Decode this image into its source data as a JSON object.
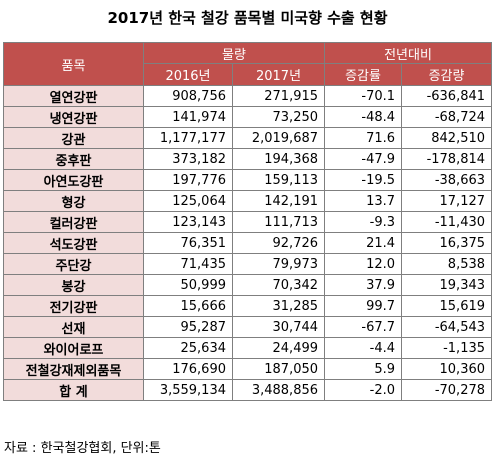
{
  "title": "2017년 한국 철강 품목별 미국향 수출 현황",
  "headers": {
    "item": "품목",
    "volume": "물량",
    "prev_year": "전년대비",
    "y2016": "2016년",
    "y2017": "2017년",
    "rate": "증감률",
    "amount": "증감량"
  },
  "rows": [
    {
      "name": "열연강판",
      "v2016": "908,756",
      "v2017": "271,915",
      "rate": "-70.1",
      "amount": "-636,841"
    },
    {
      "name": "냉연강판",
      "v2016": "141,974",
      "v2017": "73,250",
      "rate": "-48.4",
      "amount": "-68,724"
    },
    {
      "name": "강관",
      "v2016": "1,177,177",
      "v2017": "2,019,687",
      "rate": "71.6",
      "amount": "842,510"
    },
    {
      "name": "중후판",
      "v2016": "373,182",
      "v2017": "194,368",
      "rate": "-47.9",
      "amount": "-178,814"
    },
    {
      "name": "아연도강판",
      "v2016": "197,776",
      "v2017": "159,113",
      "rate": "-19.5",
      "amount": "-38,663"
    },
    {
      "name": "형강",
      "v2016": "125,064",
      "v2017": "142,191",
      "rate": "13.7",
      "amount": "17,127"
    },
    {
      "name": "컬러강판",
      "v2016": "123,143",
      "v2017": "111,713",
      "rate": "-9.3",
      "amount": "-11,430"
    },
    {
      "name": "석도강판",
      "v2016": "76,351",
      "v2017": "92,726",
      "rate": "21.4",
      "amount": "16,375"
    },
    {
      "name": "주단강",
      "v2016": "71,435",
      "v2017": "79,973",
      "rate": "12.0",
      "amount": "8,538"
    },
    {
      "name": "봉강",
      "v2016": "50,999",
      "v2017": "70,342",
      "rate": "37.9",
      "amount": "19,343"
    },
    {
      "name": "전기강판",
      "v2016": "15,666",
      "v2017": "31,285",
      "rate": "99.7",
      "amount": "15,619"
    },
    {
      "name": "선재",
      "v2016": "95,287",
      "v2017": "30,744",
      "rate": "-67.7",
      "amount": "-64,543"
    },
    {
      "name": "와이어로프",
      "v2016": "25,634",
      "v2017": "24,499",
      "rate": "-4.4",
      "amount": "-1,135"
    },
    {
      "name": "전철강재제외품목",
      "v2016": "176,690",
      "v2017": "187,050",
      "rate": "5.9",
      "amount": "10,360"
    },
    {
      "name": "합 계",
      "v2016": "3,559,134",
      "v2017": "3,488,856",
      "rate": "-2.0",
      "amount": "-70,278"
    }
  ],
  "source": "자료 : 한국철강협회, 단위:톤"
}
